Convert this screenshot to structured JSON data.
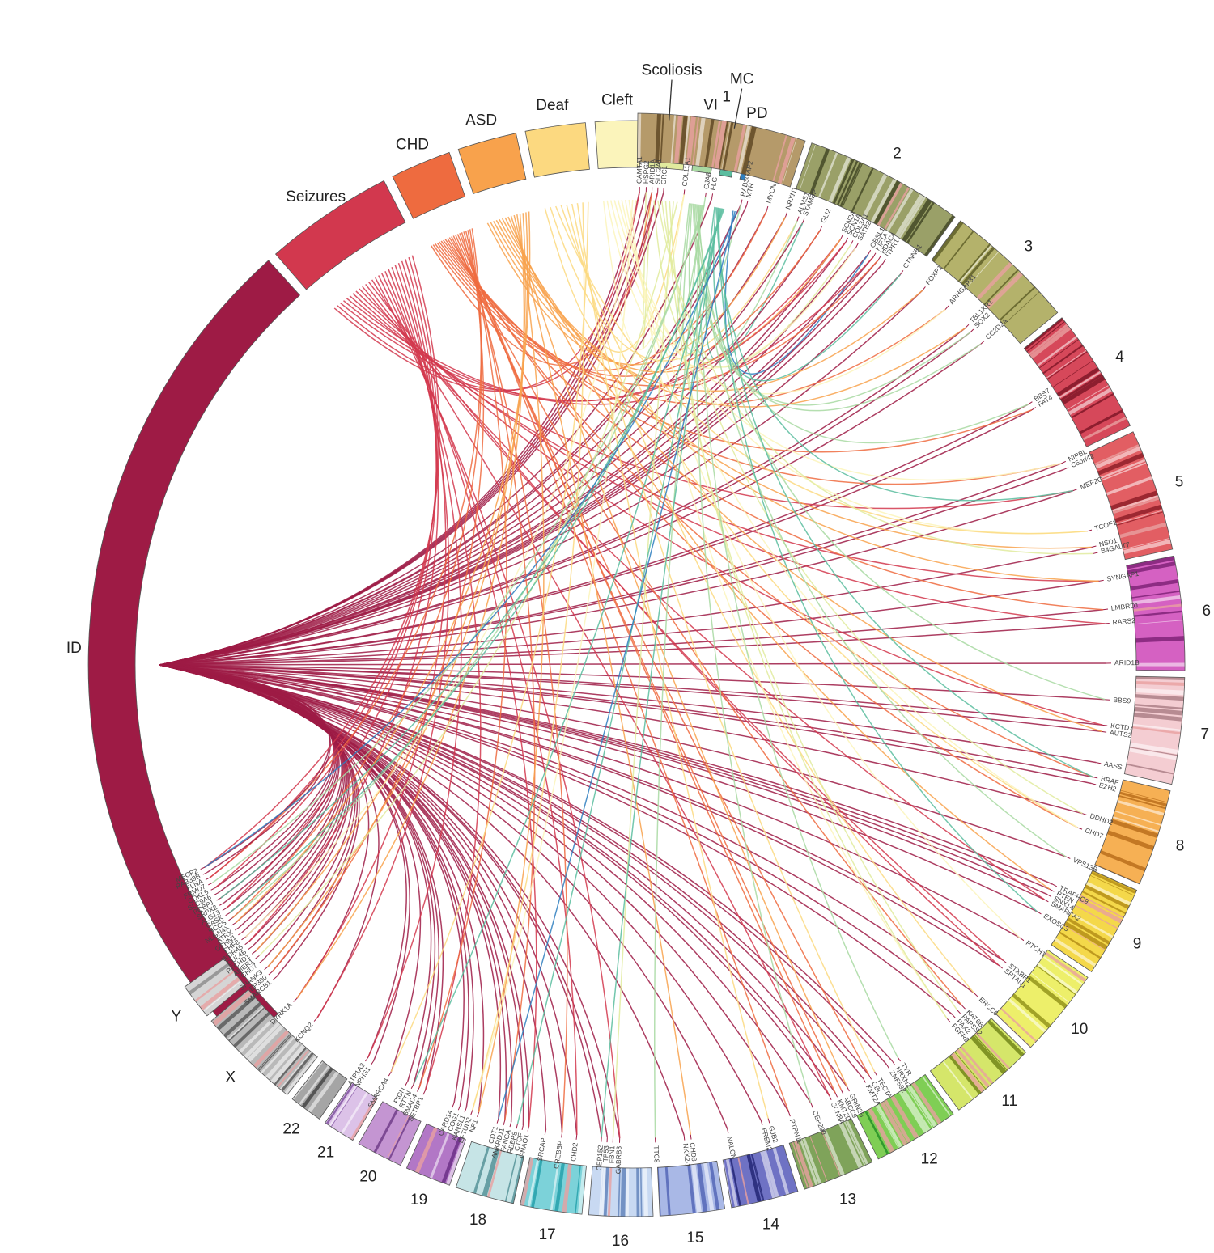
{
  "phenotypes": [
    {
      "label": "ID",
      "color": "#9e1b45",
      "start": 225.5,
      "end": 318.0
    },
    {
      "label": "Seizures",
      "color": "#d2384e",
      "start": 319.0,
      "end": 332.8
    },
    {
      "label": "CHD",
      "color": "#ee6b3f",
      "start": 333.8,
      "end": 340.3
    },
    {
      "label": "ASD",
      "color": "#f8a24c",
      "start": 341.3,
      "end": 347.6
    },
    {
      "label": "Deaf",
      "color": "#fcd980",
      "start": 348.6,
      "end": 355.0
    },
    {
      "label": "Cleft",
      "color": "#fbf4bb",
      "start": 356.0,
      "end": 360.8
    },
    {
      "label": "Scoliosis",
      "color": "#e1eb9e",
      "start": 361.8,
      "end": 365.8,
      "leader": true
    },
    {
      "label": "VI",
      "color": "#a8d9a2",
      "start": 366.8,
      "end": 369.0
    },
    {
      "label": "MC",
      "color": "#5bbd9f",
      "start": 370.0,
      "end": 371.4,
      "leader": true
    },
    {
      "label": "PD",
      "color": "#2f7fc0",
      "start": 372.4,
      "end": 372.95
    }
  ],
  "chromosomes": [
    {
      "label": "1",
      "color": "#b59a6a",
      "dark": "#5b4320",
      "start": 0.5,
      "end": 18.2
    },
    {
      "label": "2",
      "color": "#9aa068",
      "dark": "#3f4322",
      "start": 18.9,
      "end": 35.7
    },
    {
      "label": "3",
      "color": "#b4b26b",
      "dark": "#5a5a24",
      "start": 36.4,
      "end": 50.3
    },
    {
      "label": "4",
      "color": "#d6485a",
      "dark": "#7a1424",
      "start": 51.0,
      "end": 64.3
    },
    {
      "label": "5",
      "color": "#e25e63",
      "dark": "#8b1a24",
      "start": 65.0,
      "end": 77.9
    },
    {
      "label": "6",
      "color": "#d561c2",
      "dark": "#7b1f73",
      "start": 78.6,
      "end": 90.6
    },
    {
      "label": "7",
      "color": "#f4cdd2",
      "dark": "#a87a82",
      "start": 91.3,
      "end": 102.5
    },
    {
      "label": "8",
      "color": "#f6b054",
      "dark": "#b76a18",
      "start": 103.2,
      "end": 113.4
    },
    {
      "label": "9",
      "color": "#f4d84a",
      "dark": "#b08a14",
      "start": 114.1,
      "end": 123.8
    },
    {
      "label": "10",
      "color": "#edef6a",
      "dark": "#8d8f16",
      "start": 124.5,
      "end": 133.9
    },
    {
      "label": "11",
      "color": "#d5e66a",
      "dark": "#6b7f14",
      "start": 134.6,
      "end": 143.8
    },
    {
      "label": "12",
      "color": "#7fce55",
      "dark": "#1f8d24",
      "start": 144.5,
      "end": 153.6
    },
    {
      "label": "13",
      "color": "#7fa35a",
      "dark": "#2e4b1e",
      "start": 154.3,
      "end": 161.9
    },
    {
      "label": "14",
      "color": "#6f72c4",
      "dark": "#1e2070",
      "start": 162.6,
      "end": 169.7
    },
    {
      "label": "15",
      "color": "#a9b8e6",
      "dark": "#4f62b4",
      "start": 170.4,
      "end": 177.2
    },
    {
      "label": "16",
      "color": "#c8d9f2",
      "dark": "#5e7fb8",
      "start": 177.9,
      "end": 184.6
    },
    {
      "label": "17",
      "color": "#7cd2d9",
      "dark": "#1f9ea8",
      "start": 185.3,
      "end": 191.8
    },
    {
      "label": "18",
      "color": "#c6e4e6",
      "dark": "#4f8d93",
      "start": 192.5,
      "end": 198.7
    },
    {
      "label": "19",
      "color": "#b277c6",
      "dark": "#662b82",
      "start": 199.4,
      "end": 204.2
    },
    {
      "label": "20",
      "color": "#c495d2",
      "dark": "#6b3784",
      "start": 204.9,
      "end": 209.8
    },
    {
      "label": "21",
      "color": "#dcc2e8",
      "dark": "#7b4c9b",
      "start": 210.5,
      "end": 213.9
    },
    {
      "label": "22",
      "color": "#a5a5a5",
      "dark": "#404040",
      "start": 214.6,
      "end": 218.1
    },
    {
      "label": "X",
      "color": "#b9b9b9",
      "dark": "#555555",
      "start": 218.8,
      "end": 229.8
    },
    {
      "label": "Y",
      "color": "#d5d5d5",
      "dark": "#8a8a8a",
      "start": 230.5,
      "end": 234.3
    }
  ],
  "genes": [
    {
      "name": "CAMTA1",
      "angle": 0.8,
      "links": [
        0,
        1
      ]
    },
    {
      "name": "HSPG2",
      "angle": 1.6,
      "links": [
        0,
        6
      ]
    },
    {
      "name": "ARID1A",
      "angle": 2.3,
      "links": [
        0,
        2
      ]
    },
    {
      "name": "SLC2A1",
      "angle": 3.0,
      "links": [
        0,
        1
      ]
    },
    {
      "name": "ORC1",
      "angle": 3.7,
      "links": [
        0
      ]
    },
    {
      "name": "COL11A1",
      "angle": 6.2,
      "links": [
        4,
        5
      ]
    },
    {
      "name": "GJA8",
      "angle": 8.8,
      "links": [
        7
      ]
    },
    {
      "name": "FLG",
      "angle": 9.6,
      "links": [
        0
      ]
    },
    {
      "name": "RAB3GAP2",
      "angle": 13.2,
      "links": [
        0,
        7
      ]
    },
    {
      "name": "MTR",
      "angle": 13.9,
      "links": [
        0
      ]
    },
    {
      "name": "MYCN",
      "angle": 16.4,
      "links": [
        0,
        2
      ]
    },
    {
      "name": "NRXN1",
      "angle": 18.8,
      "links": [
        0,
        3
      ]
    },
    {
      "name": "ALMS1",
      "angle": 20.3,
      "links": [
        4,
        7
      ]
    },
    {
      "name": "STAMBP",
      "angle": 21.0,
      "links": [
        0,
        8
      ]
    },
    {
      "name": "GLI2",
      "angle": 23.3,
      "links": [
        0,
        2
      ]
    },
    {
      "name": "SCN2A",
      "angle": 26.0,
      "links": [
        0,
        1,
        3
      ]
    },
    {
      "name": "SCN1A",
      "angle": 26.7,
      "links": [
        0,
        1
      ]
    },
    {
      "name": "COL3A1",
      "angle": 27.4,
      "links": [
        6
      ]
    },
    {
      "name": "SATB2",
      "angle": 28.1,
      "links": [
        0,
        5
      ]
    },
    {
      "name": "OBSL1",
      "angle": 29.8,
      "links": [
        0,
        9
      ]
    },
    {
      "name": "KIF1A",
      "angle": 30.5,
      "links": [
        0,
        1
      ]
    },
    {
      "name": "HDAC4",
      "angle": 31.2,
      "links": [
        0,
        2
      ]
    },
    {
      "name": "ITPR1",
      "angle": 31.9,
      "links": [
        0
      ]
    },
    {
      "name": "CTNNB1",
      "angle": 34.4,
      "links": [
        0,
        8
      ]
    },
    {
      "name": "FOXP1",
      "angle": 37.7,
      "links": [
        0,
        3
      ]
    },
    {
      "name": "ARHGAP31",
      "angle": 41.3,
      "links": [
        2,
        5
      ]
    },
    {
      "name": "TBL1XR1",
      "angle": 44.6,
      "links": [
        0,
        3
      ]
    },
    {
      "name": "SOX2",
      "angle": 45.4,
      "links": [
        0,
        7
      ]
    },
    {
      "name": "CC2D2A",
      "angle": 47.3,
      "links": [
        0,
        7
      ]
    },
    {
      "name": "BBS7",
      "angle": 56.6,
      "links": [
        0,
        7
      ]
    },
    {
      "name": "FAT4",
      "angle": 57.4,
      "links": [
        0,
        2
      ]
    },
    {
      "name": "NIPBL",
      "angle": 64.8,
      "links": [
        0,
        2,
        5
      ]
    },
    {
      "name": "C5orf42",
      "angle": 65.6,
      "links": [
        0
      ]
    },
    {
      "name": "MEF2C",
      "angle": 68.4,
      "links": [
        0,
        1,
        8
      ]
    },
    {
      "name": "TCOF1",
      "angle": 73.6,
      "links": [
        5,
        4
      ]
    },
    {
      "name": "NSD1",
      "angle": 75.6,
      "links": [
        0,
        3
      ]
    },
    {
      "name": "B4GALT7",
      "angle": 76.4,
      "links": [
        6
      ]
    },
    {
      "name": "SYNGAP1",
      "angle": 79.8,
      "links": [
        0,
        1,
        3
      ]
    },
    {
      "name": "LMBRD1",
      "angle": 83.3,
      "links": [
        0,
        2
      ]
    },
    {
      "name": "RARS2",
      "angle": 85.0,
      "links": [
        0,
        1
      ]
    },
    {
      "name": "ARID1B",
      "angle": 89.8,
      "links": [
        0
      ]
    },
    {
      "name": "BBS9",
      "angle": 94.2,
      "links": [
        0,
        7
      ]
    },
    {
      "name": "KCTD7",
      "angle": 97.3,
      "links": [
        0,
        1
      ]
    },
    {
      "name": "AUTS2",
      "angle": 98.1,
      "links": [
        0,
        3
      ]
    },
    {
      "name": "AASS",
      "angle": 101.9,
      "links": [
        0
      ]
    },
    {
      "name": "BRAF",
      "angle": 103.7,
      "links": [
        0,
        2,
        8
      ]
    },
    {
      "name": "EZH2",
      "angle": 104.5,
      "links": [
        0
      ]
    },
    {
      "name": "DDHD2",
      "angle": 108.3,
      "links": [
        0,
        6
      ]
    },
    {
      "name": "CHD7",
      "angle": 110.1,
      "links": [
        2,
        4,
        5
      ]
    },
    {
      "name": "VPS13B",
      "angle": 113.9,
      "links": [
        0,
        7
      ]
    },
    {
      "name": "TRAPPC9",
      "angle": 117.6,
      "links": [
        0
      ]
    },
    {
      "name": "PTEN",
      "angle": 118.3,
      "links": [
        0,
        3
      ]
    },
    {
      "name": "SNX14",
      "angle": 119.0,
      "links": [
        0
      ]
    },
    {
      "name": "SMARCA2",
      "angle": 119.7,
      "links": [
        0,
        1
      ]
    },
    {
      "name": "EXOSC3",
      "angle": 121.4,
      "links": [
        0,
        8
      ]
    },
    {
      "name": "PTCH1",
      "angle": 125.2,
      "links": [
        0,
        5
      ]
    },
    {
      "name": "STXBP1",
      "angle": 128.6,
      "links": [
        0,
        1
      ]
    },
    {
      "name": "SPTAN1",
      "angle": 129.4,
      "links": [
        0,
        1
      ]
    },
    {
      "name": "ERCC6",
      "angle": 133.9,
      "links": [
        0,
        4
      ]
    },
    {
      "name": "KAT6B",
      "angle": 136.0,
      "links": [
        0,
        2
      ]
    },
    {
      "name": "PAPSS2",
      "angle": 136.8,
      "links": [
        6
      ]
    },
    {
      "name": "PAX2",
      "angle": 137.6,
      "links": [
        0
      ]
    },
    {
      "name": "FGFR2",
      "angle": 138.4,
      "links": [
        5,
        6
      ]
    },
    {
      "name": "TYR",
      "angle": 146.0,
      "links": [
        7
      ]
    },
    {
      "name": "NRXN2",
      "angle": 146.8,
      "links": [
        0
      ]
    },
    {
      "name": "ZNF592",
      "angle": 147.6,
      "links": [
        0
      ]
    },
    {
      "name": "TECTA",
      "angle": 149.3,
      "links": [
        4
      ]
    },
    {
      "name": "CBL",
      "angle": 150.1,
      "links": [
        0,
        2
      ]
    },
    {
      "name": "KMT2A",
      "angle": 150.9,
      "links": [
        0
      ]
    },
    {
      "name": "GRIN2B",
      "angle": 153.1,
      "links": [
        0,
        3
      ]
    },
    {
      "name": "ABCC9",
      "angle": 153.9,
      "links": [
        2
      ]
    },
    {
      "name": "KMT2D",
      "angle": 154.7,
      "links": [
        0,
        2
      ]
    },
    {
      "name": "SCN8A",
      "angle": 155.5,
      "links": [
        0,
        1
      ]
    },
    {
      "name": "CEP290",
      "angle": 157.9,
      "links": [
        0,
        7
      ]
    },
    {
      "name": "PTPN11",
      "angle": 160.8,
      "links": [
        2,
        0
      ]
    },
    {
      "name": "GJB2",
      "angle": 163.4,
      "links": [
        4
      ]
    },
    {
      "name": "FREM2",
      "angle": 164.3,
      "links": [
        0
      ]
    },
    {
      "name": "NALCN",
      "angle": 168.5,
      "links": [
        0
      ]
    },
    {
      "name": "CHD8",
      "angle": 173.0,
      "links": [
        3
      ]
    },
    {
      "name": "NKX2-1",
      "angle": 173.8,
      "links": [
        0
      ]
    },
    {
      "name": "TTC8",
      "angle": 177.3,
      "links": [
        7
      ]
    },
    {
      "name": "GABRB3",
      "angle": 181.6,
      "links": [
        0,
        1
      ]
    },
    {
      "name": "FBN1",
      "angle": 182.4,
      "links": [
        6
      ]
    },
    {
      "name": "TP53",
      "angle": 183.1,
      "links": [
        0
      ]
    },
    {
      "name": "CEP152",
      "angle": 183.8,
      "links": [
        0,
        8
      ]
    },
    {
      "name": "CHD2",
      "angle": 186.8,
      "links": [
        0,
        1
      ]
    },
    {
      "name": "CREBBP",
      "angle": 188.6,
      "links": [
        0,
        2
      ]
    },
    {
      "name": "SRCAP",
      "angle": 190.6,
      "links": [
        0
      ]
    },
    {
      "name": "GNAO1",
      "angle": 192.7,
      "links": [
        0,
        1
      ]
    },
    {
      "name": "CTCF",
      "angle": 193.4,
      "links": [
        0
      ]
    },
    {
      "name": "RBBP8",
      "angle": 194.1,
      "links": [
        8
      ]
    },
    {
      "name": "FANCA",
      "angle": 194.9,
      "links": [
        0
      ]
    },
    {
      "name": "ANKRD11",
      "angle": 195.7,
      "links": [
        0,
        2
      ]
    },
    {
      "name": "CDT1",
      "angle": 196.5,
      "links": [
        0,
        9
      ]
    },
    {
      "name": "NF1",
      "angle": 199.0,
      "links": [
        0,
        3
      ]
    },
    {
      "name": "EFTUD2",
      "angle": 199.8,
      "links": [
        5,
        4
      ]
    },
    {
      "name": "KANSL1",
      "angle": 200.6,
      "links": [
        0
      ]
    },
    {
      "name": "COG1",
      "angle": 201.4,
      "links": [
        0
      ]
    },
    {
      "name": "CARD14",
      "angle": 202.2,
      "links": [
        0
      ]
    },
    {
      "name": "SETBP1",
      "angle": 206.0,
      "links": [
        0,
        1
      ]
    },
    {
      "name": "SMAD4",
      "angle": 206.8,
      "links": [
        0,
        2
      ]
    },
    {
      "name": "RTTN",
      "angle": 207.6,
      "links": [
        8,
        0
      ]
    },
    {
      "name": "PIGN",
      "angle": 208.4,
      "links": [
        0
      ]
    },
    {
      "name": "SMARCA4",
      "angle": 210.7,
      "links": [
        0,
        4
      ]
    },
    {
      "name": "NPHS1",
      "angle": 213.2,
      "links": [
        0
      ]
    },
    {
      "name": "ATP1A3",
      "angle": 214.0,
      "links": [
        0,
        1
      ]
    },
    {
      "name": "KCNQ2",
      "angle": 221.8,
      "links": [
        0,
        1
      ]
    },
    {
      "name": "DYRK1A",
      "angle": 225.2,
      "links": [
        0,
        1,
        3
      ]
    },
    {
      "name": "SMARCB1",
      "angle": 228.8,
      "links": [
        0
      ]
    },
    {
      "name": "EP300",
      "angle": 229.6,
      "links": [
        0,
        2
      ]
    },
    {
      "name": "SHANK3",
      "angle": 230.4,
      "links": [
        0,
        3
      ]
    },
    {
      "name": "CHD7",
      "angle": 231.4,
      "links": [
        0
      ]
    },
    {
      "name": "AMER1",
      "angle": 232.1,
      "links": [
        6
      ]
    },
    {
      "name": "PTCHD1",
      "angle": 232.8,
      "links": [
        0,
        3
      ]
    },
    {
      "name": "CUL4B",
      "angle": 233.5,
      "links": [
        0
      ]
    },
    {
      "name": "WDR45",
      "angle": 234.2,
      "links": [
        0,
        1
      ]
    },
    {
      "name": "PHF8",
      "angle": 234.9,
      "links": [
        0,
        5
      ]
    },
    {
      "name": "OPHN1",
      "angle": 235.6,
      "links": [
        0
      ]
    },
    {
      "name": "ATRX",
      "angle": 236.3,
      "links": [
        0
      ]
    },
    {
      "name": "NLGN4X",
      "angle": 237.0,
      "links": [
        0,
        3
      ]
    },
    {
      "name": "HCCS",
      "angle": 237.7,
      "links": [
        7,
        2
      ]
    },
    {
      "name": "CASK",
      "angle": 238.4,
      "links": [
        0,
        8
      ]
    },
    {
      "name": "ALG13",
      "angle": 239.1,
      "links": [
        0,
        1
      ]
    },
    {
      "name": "SRPX2",
      "angle": 239.8,
      "links": [
        0
      ]
    },
    {
      "name": "PQBP1",
      "angle": 240.5,
      "links": [
        0,
        8
      ]
    },
    {
      "name": "SLC9A6",
      "angle": 241.2,
      "links": [
        0
      ]
    },
    {
      "name": "CDKL5",
      "angle": 241.9,
      "links": [
        0,
        1
      ]
    },
    {
      "name": "FRMD7",
      "angle": 242.6,
      "links": [
        7
      ]
    },
    {
      "name": "FLNA",
      "angle": 243.3,
      "links": [
        2,
        1
      ]
    },
    {
      "name": "RAB39B",
      "angle": 244.0,
      "links": [
        0
      ]
    },
    {
      "name": "MECP2",
      "angle": 244.7,
      "links": [
        0,
        1,
        9
      ]
    }
  ]
}
